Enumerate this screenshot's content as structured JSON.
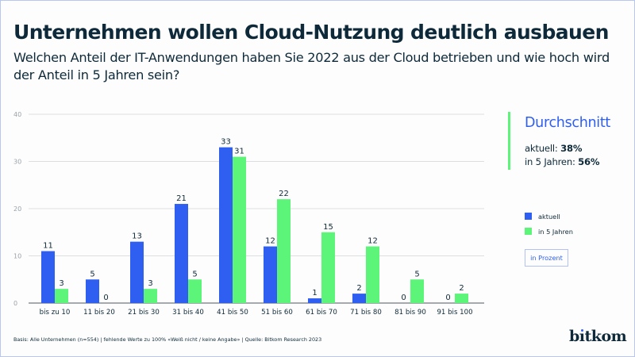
{
  "header": {
    "title": "Unternehmen wollen Cloud-Nutzung deutlich ausbauen",
    "subtitle": "Welchen Anteil der IT-Anwendungen haben Sie 2022 aus der Cloud betrieben und wie hoch wird der Anteil in 5 Jahren sein?"
  },
  "chart_data": {
    "type": "bar",
    "title": "Unternehmen wollen Cloud-Nutzung deutlich ausbauen",
    "xlabel": "",
    "ylabel": "",
    "unit": "in Prozent",
    "ylim": [
      0,
      40
    ],
    "yticks": [
      0,
      10,
      20,
      30,
      40
    ],
    "grid": true,
    "legend_position": "right",
    "categories": [
      "bis zu 10",
      "11 bis 20",
      "21 bis 30",
      "31 bis 40",
      "41 bis 50",
      "51 bis 60",
      "61 bis 70",
      "71 bis 80",
      "81 bis 90",
      "91 bis 100"
    ],
    "series": [
      {
        "name": "aktuell",
        "color": "#2f5ff0",
        "values": [
          11,
          5,
          13,
          21,
          33,
          12,
          1,
          2,
          0,
          0
        ]
      },
      {
        "name": "in 5 Jahren",
        "color": "#5cf57a",
        "values": [
          3,
          0,
          3,
          5,
          31,
          22,
          15,
          12,
          5,
          2
        ]
      }
    ]
  },
  "average": {
    "title": "Durchschnitt",
    "current_label": "aktuell: ",
    "current_value": "38%",
    "future_label": "in 5 Jahren: ",
    "future_value": "56%",
    "accent_color": "#5cf57a"
  },
  "legend": {
    "items": [
      {
        "label": "aktuell",
        "color": "#2f5ff0"
      },
      {
        "label": "in 5 Jahren",
        "color": "#5cf57a"
      }
    ],
    "unit_label": "in Prozent"
  },
  "footer": {
    "note": "Basis: Alle Unternehmen (n=554) | fehlende Werte zu 100% «Weiß nicht / keine Angabe» | Quelle: Bitkom Research 2023"
  },
  "brand": {
    "logo_pre": "b",
    "logo_i": "ı",
    "logo_post": "tkom"
  }
}
